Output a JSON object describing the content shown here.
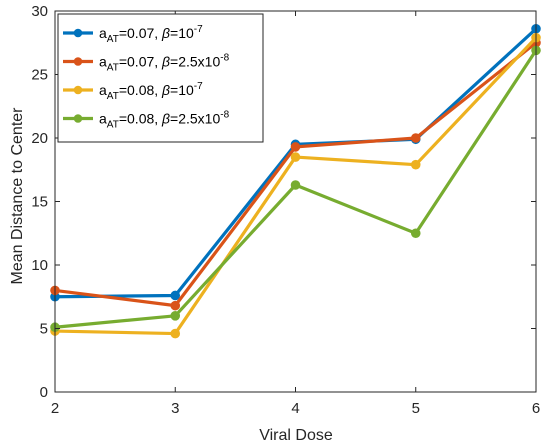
{
  "chart_data": {
    "type": "line",
    "xlabel": "Viral Dose",
    "ylabel": "Mean Distance to Center",
    "xlim": [
      2,
      6
    ],
    "ylim": [
      0,
      30
    ],
    "xticks": [
      2,
      3,
      4,
      5,
      6
    ],
    "yticks": [
      0,
      5,
      10,
      15,
      20,
      25,
      30
    ],
    "grid": false,
    "legend_position": "top-left",
    "x": [
      2,
      3,
      4,
      5,
      6
    ],
    "series": [
      {
        "name": "a_AT=0.07, β=10^-7",
        "legend": {
          "a": "a",
          "sub": "AT",
          "mid": "=0.07, ",
          "beta": "β",
          "eq": "=10",
          "sup": "-7"
        },
        "color": "#0072BD",
        "values": [
          7.5,
          7.6,
          19.5,
          19.9,
          28.6
        ]
      },
      {
        "name": "a_AT=0.07, β=2.5x10^-8",
        "legend": {
          "a": "a",
          "sub": "AT",
          "mid": "=0.07, ",
          "beta": "β",
          "eq": "=2.5x10",
          "sup": "-8"
        },
        "color": "#D95319",
        "values": [
          8.0,
          6.8,
          19.3,
          20.0,
          27.5
        ]
      },
      {
        "name": "a_AT=0.08, β=10^-7",
        "legend": {
          "a": "a",
          "sub": "AT",
          "mid": "=0.08, ",
          "beta": "β",
          "eq": "=10",
          "sup": "-7"
        },
        "color": "#EDB120",
        "values": [
          4.8,
          4.6,
          18.5,
          17.9,
          27.9
        ]
      },
      {
        "name": "a_AT=0.08, β=2.5x10^-8",
        "legend": {
          "a": "a",
          "sub": "AT",
          "mid": "=0.08, ",
          "beta": "β",
          "eq": "=2.5x10",
          "sup": "-8"
        },
        "color": "#77AC30",
        "values": [
          5.1,
          6.0,
          16.3,
          12.5,
          26.9
        ]
      }
    ]
  }
}
